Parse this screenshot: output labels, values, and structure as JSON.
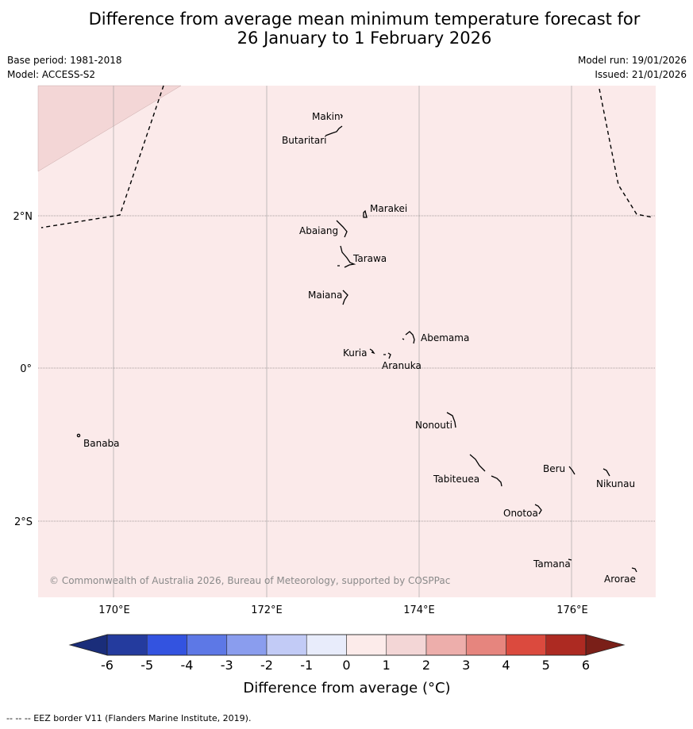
{
  "title": {
    "line1": "Difference from average mean minimum temperature forecast for",
    "line2": "26 January to 1 February 2026"
  },
  "meta": {
    "base_period": "Base period: 1981-2018",
    "model": "Model: ACCESS-S2",
    "model_run": "Model run: 19/01/2026",
    "issued": "Issued: 21/01/2026"
  },
  "map": {
    "background_color": "#fbeaea",
    "warm_zone_color": "#f3d6d6",
    "lon_labels": [
      "170°E",
      "172°E",
      "174°E",
      "176°E"
    ],
    "lat_labels": [
      "2°N",
      "0°",
      "2°S"
    ],
    "copyright": "© Commonwealth of Australia 2026, Bureau of Meteorology, supported by COSPPac",
    "places": [
      "Makin",
      "Butaritari",
      "Marakei",
      "Abaiang",
      "Tarawa",
      "Maiana",
      "Abemama",
      "Kuria",
      "Aranuka",
      "Banaba",
      "Nonouti",
      "Beru",
      "Nikunau",
      "Tabiteuea",
      "Onotoa",
      "Tamana",
      "Arorae"
    ]
  },
  "colorbar": {
    "ticks": [
      "-6",
      "-5",
      "-4",
      "-3",
      "-2",
      "-1",
      "0",
      "1",
      "2",
      "3",
      "4",
      "5",
      "6"
    ],
    "colors": [
      "#243b9e",
      "#3353e0",
      "#5d78e6",
      "#8a9dee",
      "#c2cbf6",
      "#e8ecfb",
      "#fcebea",
      "#f3d6d6",
      "#edaeab",
      "#e6857e",
      "#db4a3e",
      "#ad2a22"
    ],
    "under_color": "#1a2d7a",
    "over_color": "#7a1f18",
    "label": "Difference from average (°C)"
  },
  "footnote": "--  --  -- EEZ border V11 (Flanders Marine Institute, 2019)."
}
